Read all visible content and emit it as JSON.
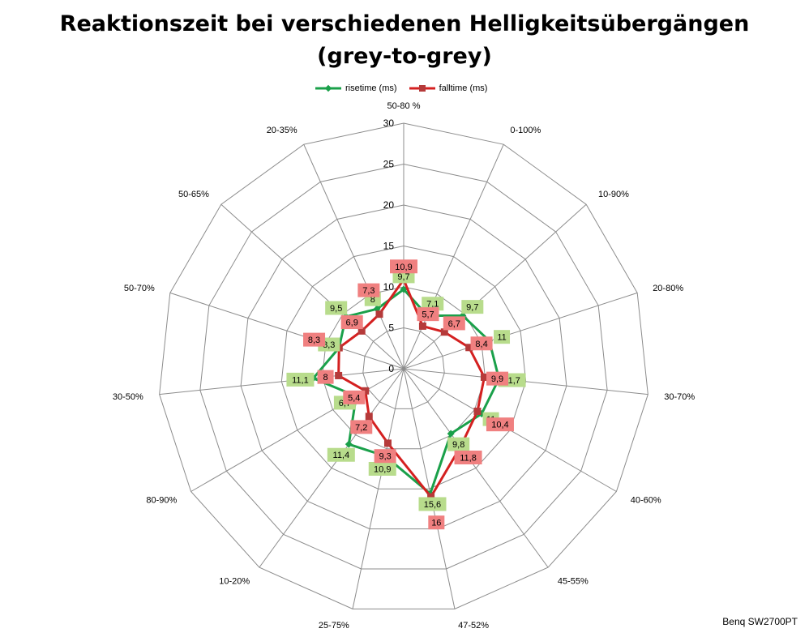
{
  "chart_data": {
    "type": "radar",
    "title_line1": "Reaktionszeit bei verschiedenen Helligkeitsübergängen",
    "title_line2": "(grey-to-grey)",
    "categories": [
      "50-80 %",
      "0-100%",
      "10-90%",
      "20-80%",
      "30-70%",
      "40-60%",
      "45-55%",
      "47-52%",
      "25-75%",
      "10-20%",
      "80-90%",
      "30-50%",
      "50-70%",
      "50-65%",
      "20-35%"
    ],
    "rlim": [
      0,
      30
    ],
    "ticks": [
      0,
      5,
      10,
      15,
      20,
      25,
      30
    ],
    "grid": true,
    "legend_position": "top",
    "series": [
      {
        "name": "risetime (ms)",
        "color": "#1aa04a",
        "label_bg": "#b8dc8c",
        "values": [
          9.7,
          7.1,
          9.7,
          11,
          11.7,
          11,
          9.8,
          15.6,
          10.9,
          11.4,
          6.7,
          11.1,
          8.3,
          9.5,
          8
        ],
        "labels": [
          "9,7",
          "7,1",
          "9,7",
          "11",
          "11,7",
          "11",
          "9,8",
          "15,6",
          "10,9",
          "11,4",
          "6,7",
          "11,1",
          "8,3",
          "9,5",
          "8"
        ]
      },
      {
        "name": "falltime (ms)",
        "color": "#d42020",
        "label_bg": "#f08080",
        "values": [
          10.9,
          5.7,
          6.7,
          8.4,
          9.9,
          10.4,
          11.8,
          16,
          9.3,
          7.2,
          5.4,
          8,
          8.3,
          6.9,
          7.3
        ],
        "labels": [
          "10,9",
          "5,7",
          "6,7",
          "8,4",
          "9,9",
          "10,4",
          "11,8",
          "16",
          "9,3",
          "7,2",
          "5,4",
          "8",
          "8,3",
          "6,9",
          "7,3"
        ]
      }
    ]
  },
  "watermark": "Benq SW2700PT"
}
